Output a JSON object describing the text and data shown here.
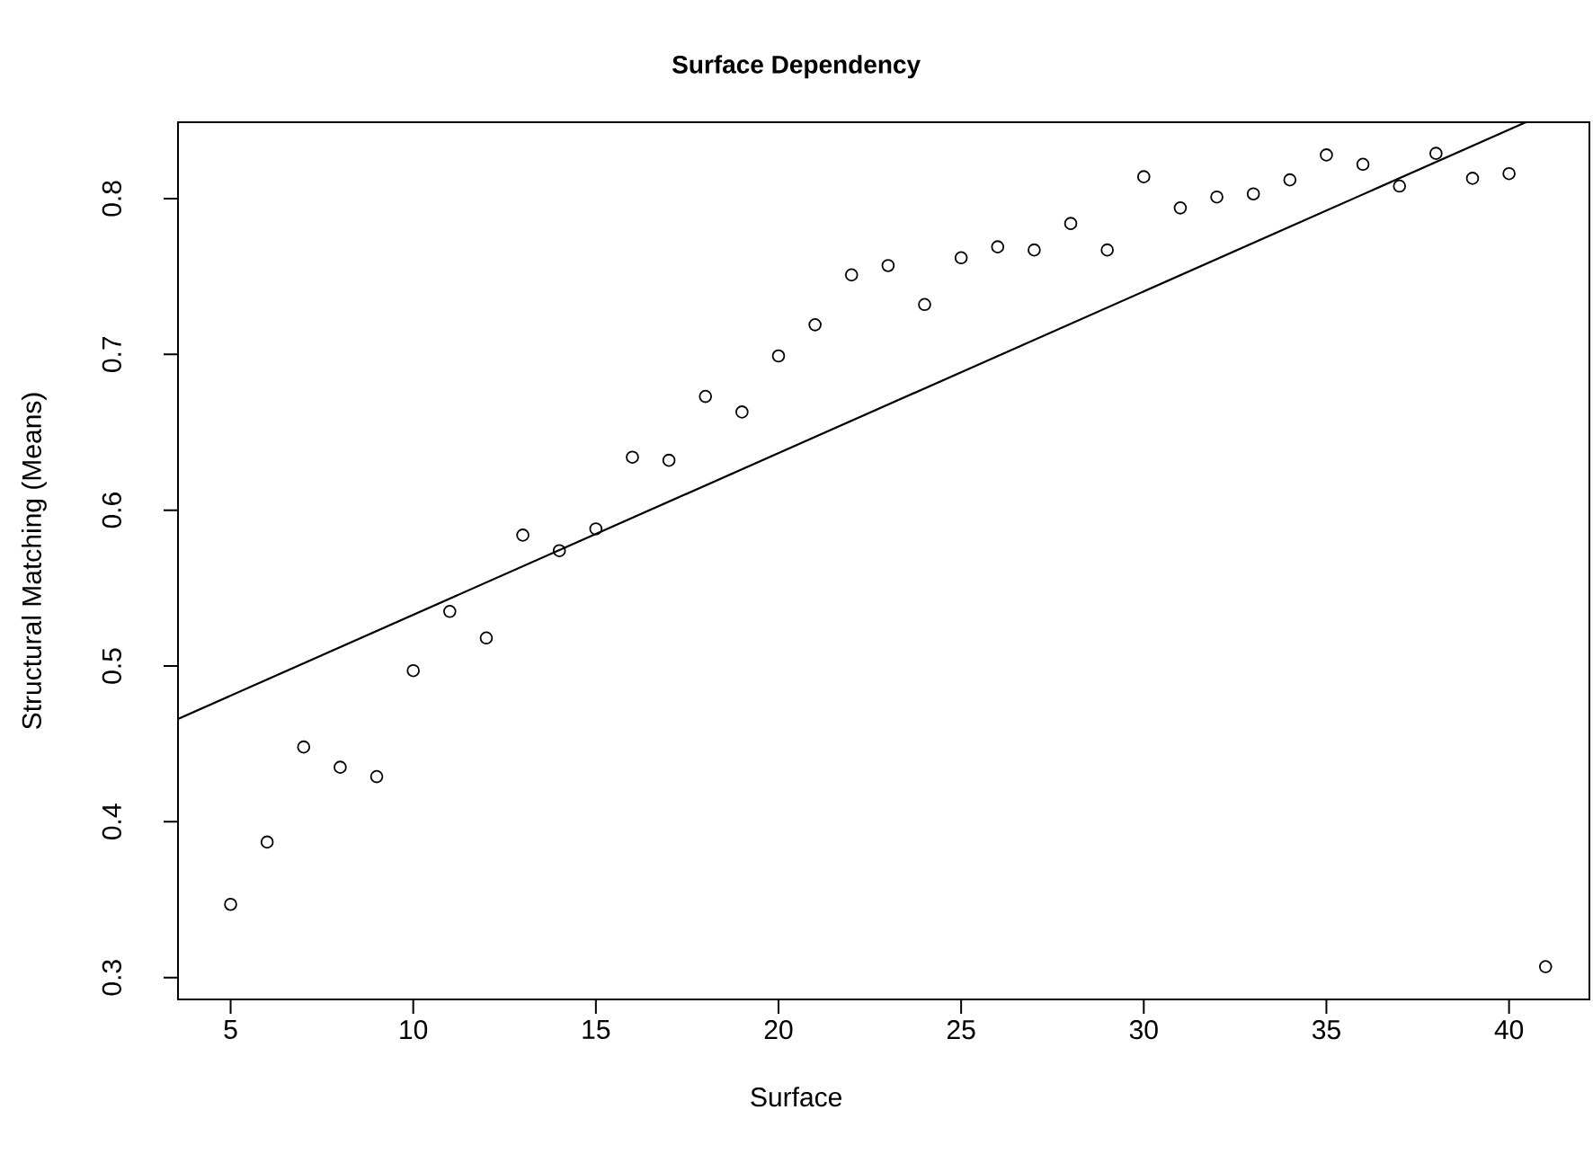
{
  "chart_data": {
    "type": "scatter",
    "title": "Surface Dependency",
    "xlabel": "Surface",
    "ylabel": "Structural Matching (Means)",
    "xlim": [
      3.56,
      42.2
    ],
    "ylim": [
      0.286,
      0.849
    ],
    "xticks": [
      5,
      10,
      15,
      20,
      25,
      30,
      35,
      40
    ],
    "yticks": [
      0.3,
      0.4,
      0.5,
      0.6,
      0.7,
      0.8
    ],
    "grid": false,
    "series": [
      {
        "color": "#000000",
        "marker": "circle",
        "x": [
          5,
          6,
          7,
          8,
          9,
          10,
          11,
          12,
          13,
          14,
          15,
          16,
          17,
          18,
          19,
          20,
          21,
          22,
          23,
          24,
          25,
          26,
          27,
          28,
          29,
          30,
          31,
          32,
          33,
          34,
          35,
          36,
          37,
          38,
          39,
          40,
          41
        ],
        "values": [
          0.347,
          0.387,
          0.448,
          0.435,
          0.429,
          0.497,
          0.535,
          0.518,
          0.584,
          0.574,
          0.588,
          0.634,
          0.632,
          0.673,
          0.663,
          0.699,
          0.719,
          0.751,
          0.757,
          0.732,
          0.762,
          0.769,
          0.767,
          0.784,
          0.767,
          0.814,
          0.794,
          0.801,
          0.803,
          0.812,
          0.828,
          0.822,
          0.808,
          0.829,
          0.813,
          0.816,
          0.307
        ]
      },
      {
        "type": "line",
        "color": "#000000",
        "marker": "none",
        "line_style": "solid",
        "x": [
          3.56,
          40.46
        ],
        "values": [
          0.466,
          0.849
        ]
      }
    ]
  }
}
